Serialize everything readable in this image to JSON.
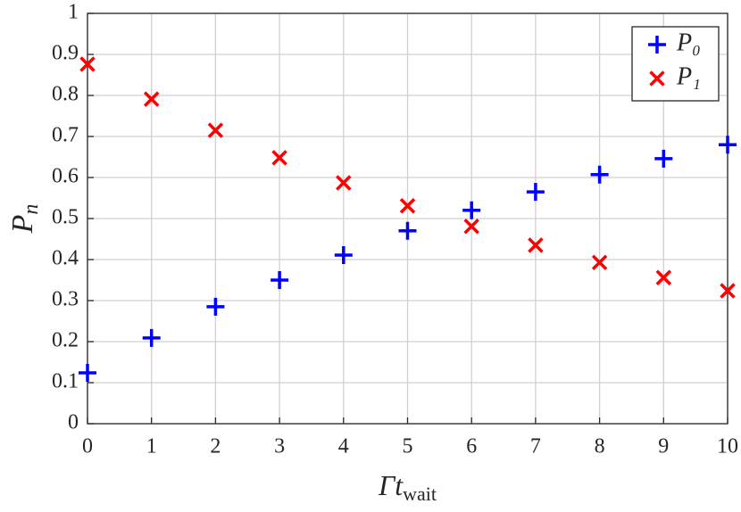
{
  "chart_data": {
    "type": "scatter",
    "xlabel": "Γt",
    "xlabel_subscript": "wait",
    "ylabel": "P",
    "ylabel_subscript": "n",
    "x": [
      0,
      1,
      2,
      3,
      4,
      5,
      6,
      7,
      8,
      9,
      10
    ],
    "series": [
      {
        "name": "P₀",
        "color": "#0000ff",
        "marker": "plus",
        "values": [
          0.124,
          0.209,
          0.285,
          0.35,
          0.411,
          0.47,
          0.52,
          0.565,
          0.607,
          0.646,
          0.68
        ]
      },
      {
        "name": "P₁",
        "color": "#ff0000",
        "marker": "cross",
        "values": [
          0.876,
          0.791,
          0.715,
          0.648,
          0.587,
          0.531,
          0.481,
          0.435,
          0.393,
          0.356,
          0.324
        ]
      }
    ],
    "xlim": [
      0,
      10
    ],
    "xticks": [
      0,
      1,
      2,
      3,
      4,
      5,
      6,
      7,
      8,
      9,
      10
    ],
    "ylim": [
      0,
      1
    ],
    "yticks": [
      0,
      0.1,
      0.2,
      0.3,
      0.4,
      0.5,
      0.6,
      0.7,
      0.8,
      0.9,
      1
    ],
    "grid": true,
    "legend": "upper right"
  }
}
